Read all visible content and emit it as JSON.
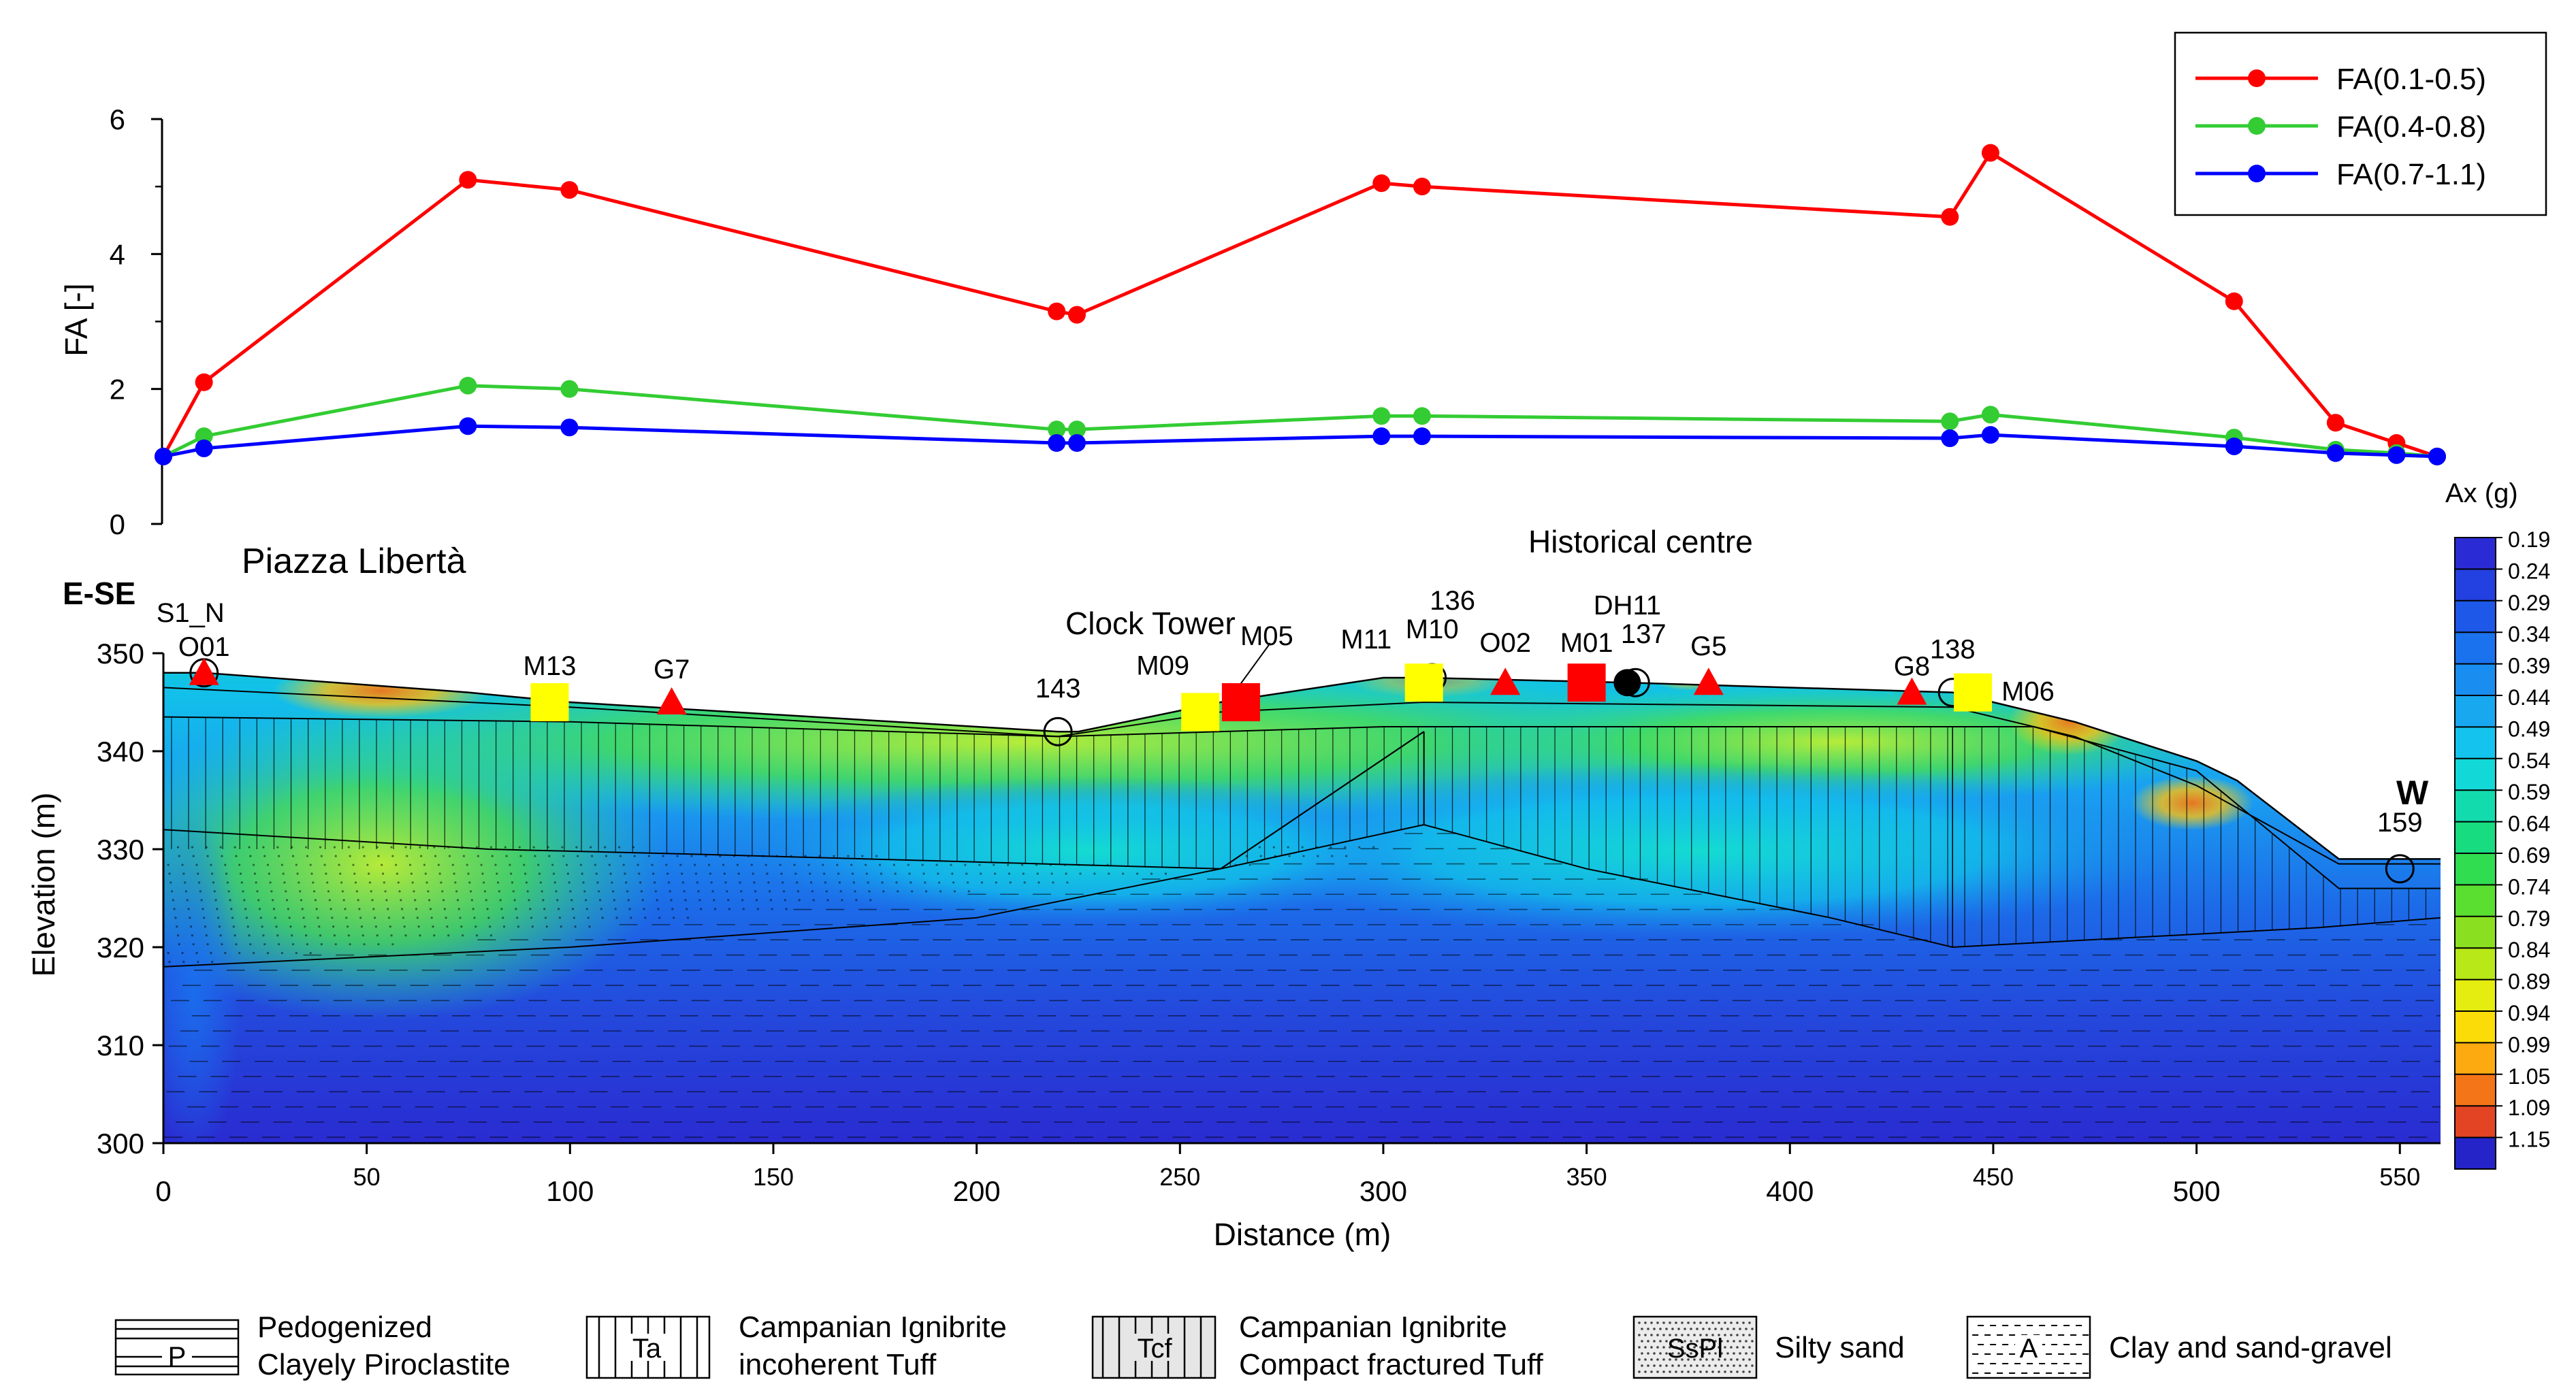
{
  "chart_data": [
    {
      "type": "line",
      "ylabel": "FA [-]",
      "xlim": [
        0,
        560
      ],
      "ylim": [
        0,
        6
      ],
      "yticks": [
        0,
        2,
        4,
        6
      ],
      "legend_position": "top-right",
      "series": [
        {
          "name": "FA(0.1-0.5)",
          "color": "#ff0000",
          "x": [
            0,
            10,
            75,
            100,
            220,
            225,
            300,
            310,
            440,
            450,
            510,
            535,
            550,
            560
          ],
          "values": [
            1.0,
            2.1,
            5.1,
            4.95,
            3.15,
            3.1,
            5.05,
            5.0,
            4.55,
            5.5,
            3.3,
            1.5,
            1.2,
            1.0
          ]
        },
        {
          "name": "FA(0.4-0.8)",
          "color": "#33cc33",
          "x": [
            0,
            10,
            75,
            100,
            220,
            225,
            300,
            310,
            440,
            450,
            510,
            535,
            550,
            560
          ],
          "values": [
            1.0,
            1.3,
            2.05,
            2.0,
            1.4,
            1.4,
            1.6,
            1.6,
            1.52,
            1.62,
            1.28,
            1.1,
            1.05,
            1.0
          ]
        },
        {
          "name": "FA(0.7-1.1)",
          "color": "#0000ff",
          "x": [
            0,
            10,
            75,
            100,
            220,
            225,
            300,
            310,
            440,
            450,
            510,
            535,
            550,
            560
          ],
          "values": [
            1.0,
            1.12,
            1.45,
            1.43,
            1.2,
            1.2,
            1.3,
            1.3,
            1.27,
            1.32,
            1.15,
            1.05,
            1.02,
            1.0
          ]
        }
      ]
    },
    {
      "type": "heatmap",
      "xlabel": "Distance (m)",
      "ylabel": "Elevation (m)",
      "xlim": [
        0,
        560
      ],
      "ylim": [
        300,
        350
      ],
      "xticks": [
        0,
        50,
        100,
        150,
        200,
        250,
        300,
        350,
        400,
        450,
        500,
        550
      ],
      "xtick_labels": [
        "0",
        "50",
        "100",
        "150",
        "200",
        "250",
        "300",
        "350",
        "400",
        "450",
        "500",
        "550"
      ],
      "yticks": [
        300,
        310,
        320,
        330,
        340,
        350
      ],
      "ytick_labels": [
        "300",
        "310",
        "320",
        "330",
        "340",
        "350"
      ],
      "colorbar_title": "Ax (g)",
      "colorbar_values": [
        "0.19",
        "0.24",
        "0.29",
        "0.34",
        "0.39",
        "0.44",
        "0.49",
        "0.54",
        "0.59",
        "0.64",
        "0.69",
        "0.74",
        "0.79",
        "0.84",
        "0.89",
        "0.94",
        "0.99",
        "1.05",
        "1.09",
        "1.15"
      ],
      "colorbar_colors": [
        "#2b2bd6",
        "#2340e0",
        "#1e58e8",
        "#1a72ee",
        "#1a8ef0",
        "#18a8f0",
        "#14c4ee",
        "#12d8d8",
        "#12dcae",
        "#18dc80",
        "#30dc50",
        "#5ade30",
        "#8ae020",
        "#b8e818",
        "#e4ec10",
        "#fcdc08",
        "#fcaa10",
        "#f47418",
        "#e24424",
        "#2424c8"
      ],
      "surface": {
        "x": [
          0,
          10,
          75,
          100,
          220,
          225,
          260,
          300,
          310,
          360,
          440,
          470,
          500,
          510,
          535,
          560
        ],
        "elev": [
          348,
          348,
          346,
          345,
          342,
          342,
          345,
          347.5,
          347.5,
          347,
          346,
          343,
          339,
          337,
          329,
          329
        ]
      },
      "annotations": {
        "left_label": "E-SE",
        "right_label": "W",
        "place_left": "Piazza Libertà",
        "place_center": "Historical centre",
        "place_clock": "Clock Tower"
      },
      "stations": [
        {
          "label": "S1_N",
          "x": 10,
          "elev": 348
        },
        {
          "label": "O01",
          "x": 10,
          "elev": 348
        },
        {
          "label": "M13",
          "x": 95,
          "elev": 345
        },
        {
          "label": "G7",
          "x": 125,
          "elev": 345
        },
        {
          "label": "143",
          "x": 220,
          "elev": 342
        },
        {
          "label": "M09",
          "x": 255,
          "elev": 344
        },
        {
          "label": "M05",
          "x": 265,
          "elev": 345
        },
        {
          "label": "M11",
          "x": 305,
          "elev": 347
        },
        {
          "label": "M10",
          "x": 310,
          "elev": 347
        },
        {
          "label": "136",
          "x": 312,
          "elev": 347.5
        },
        {
          "label": "O02",
          "x": 330,
          "elev": 347
        },
        {
          "label": "M01",
          "x": 350,
          "elev": 347
        },
        {
          "label": "DH11",
          "x": 360,
          "elev": 347
        },
        {
          "label": "137",
          "x": 362,
          "elev": 347
        },
        {
          "label": "G5",
          "x": 380,
          "elev": 347
        },
        {
          "label": "G8",
          "x": 430,
          "elev": 346
        },
        {
          "label": "138",
          "x": 440,
          "elev": 346
        },
        {
          "label": "M06",
          "x": 445,
          "elev": 346
        },
        {
          "label": "159",
          "x": 550,
          "elev": 328
        }
      ]
    }
  ],
  "geology_legend": [
    {
      "code": "P",
      "line1": "Pedogenized",
      "line2": "Clayely Piroclastite"
    },
    {
      "code": "Ta",
      "line1": "Campanian Ignibrite",
      "line2": "incoherent Tuff"
    },
    {
      "code": "Tcf",
      "line1": "Campanian Ignibrite",
      "line2": "Compact fractured Tuff"
    },
    {
      "code": "SsPl",
      "line1": "Silty sand",
      "line2": ""
    },
    {
      "code": "A",
      "line1": "Clay and sand-gravel",
      "line2": ""
    }
  ]
}
